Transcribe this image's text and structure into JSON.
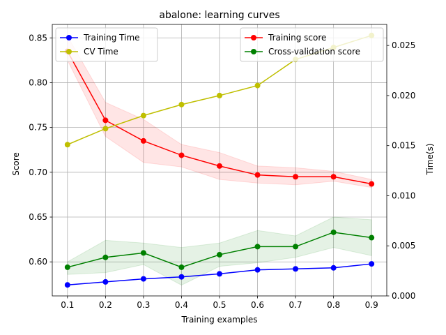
{
  "chart_data": {
    "type": "line",
    "title": "abalone: learning curves",
    "xlabel": "Training examples",
    "ylabel": "Score",
    "y2label": "Time(s)",
    "x": [
      0.1,
      0.2,
      0.3,
      0.4,
      0.5,
      0.6,
      0.7,
      0.8,
      0.9
    ],
    "xticks": [
      "0.1",
      "0.2",
      "0.3",
      "0.4",
      "0.5",
      "0.6",
      "0.7",
      "0.8",
      "0.9"
    ],
    "ylim": [
      0.562,
      0.865
    ],
    "yticks": [
      "0.60",
      "0.65",
      "0.70",
      "0.75",
      "0.80",
      "0.85"
    ],
    "y2lim": [
      0.0,
      0.0271
    ],
    "y2ticks": [
      "0.000",
      "0.005",
      "0.010",
      "0.015",
      "0.020",
      "0.025"
    ],
    "grid": true,
    "score_series": [
      {
        "name": "Training score",
        "color": "#ff0000",
        "values": [
          0.835,
          0.758,
          0.735,
          0.719,
          0.707,
          0.697,
          0.695,
          0.695,
          0.687
        ],
        "band_lower": [
          0.825,
          0.74,
          0.711,
          0.706,
          0.692,
          0.688,
          0.686,
          0.69,
          0.683
        ],
        "band_upper": [
          0.852,
          0.778,
          0.759,
          0.731,
          0.722,
          0.707,
          0.705,
          0.701,
          0.692
        ]
      },
      {
        "name": "Cross-validation score",
        "color": "#008000",
        "values": [
          0.594,
          0.605,
          0.61,
          0.594,
          0.608,
          0.617,
          0.617,
          0.633,
          0.627
        ],
        "band_lower": [
          0.586,
          0.588,
          0.597,
          0.574,
          0.595,
          0.599,
          0.605,
          0.616,
          0.607
        ],
        "band_upper": [
          0.6,
          0.624,
          0.621,
          0.616,
          0.621,
          0.635,
          0.629,
          0.65,
          0.647
        ]
      }
    ],
    "time_series": [
      {
        "name": "Training Time",
        "color": "#0000ff",
        "values": [
          0.0011,
          0.0014,
          0.0017,
          0.0019,
          0.0022,
          0.0026,
          0.0027,
          0.0028,
          0.0032
        ]
      },
      {
        "name": "CV Time",
        "color": "#bfbf00",
        "values": [
          0.0151,
          0.0167,
          0.018,
          0.0191,
          0.02,
          0.021,
          0.0236,
          0.0248,
          0.026
        ]
      }
    ],
    "legend_left": {
      "placement": "top-left",
      "entries": [
        "Training Time",
        "CV Time"
      ]
    },
    "legend_right": {
      "placement": "top-right",
      "entries": [
        "Training score",
        "Cross-validation score"
      ]
    }
  }
}
